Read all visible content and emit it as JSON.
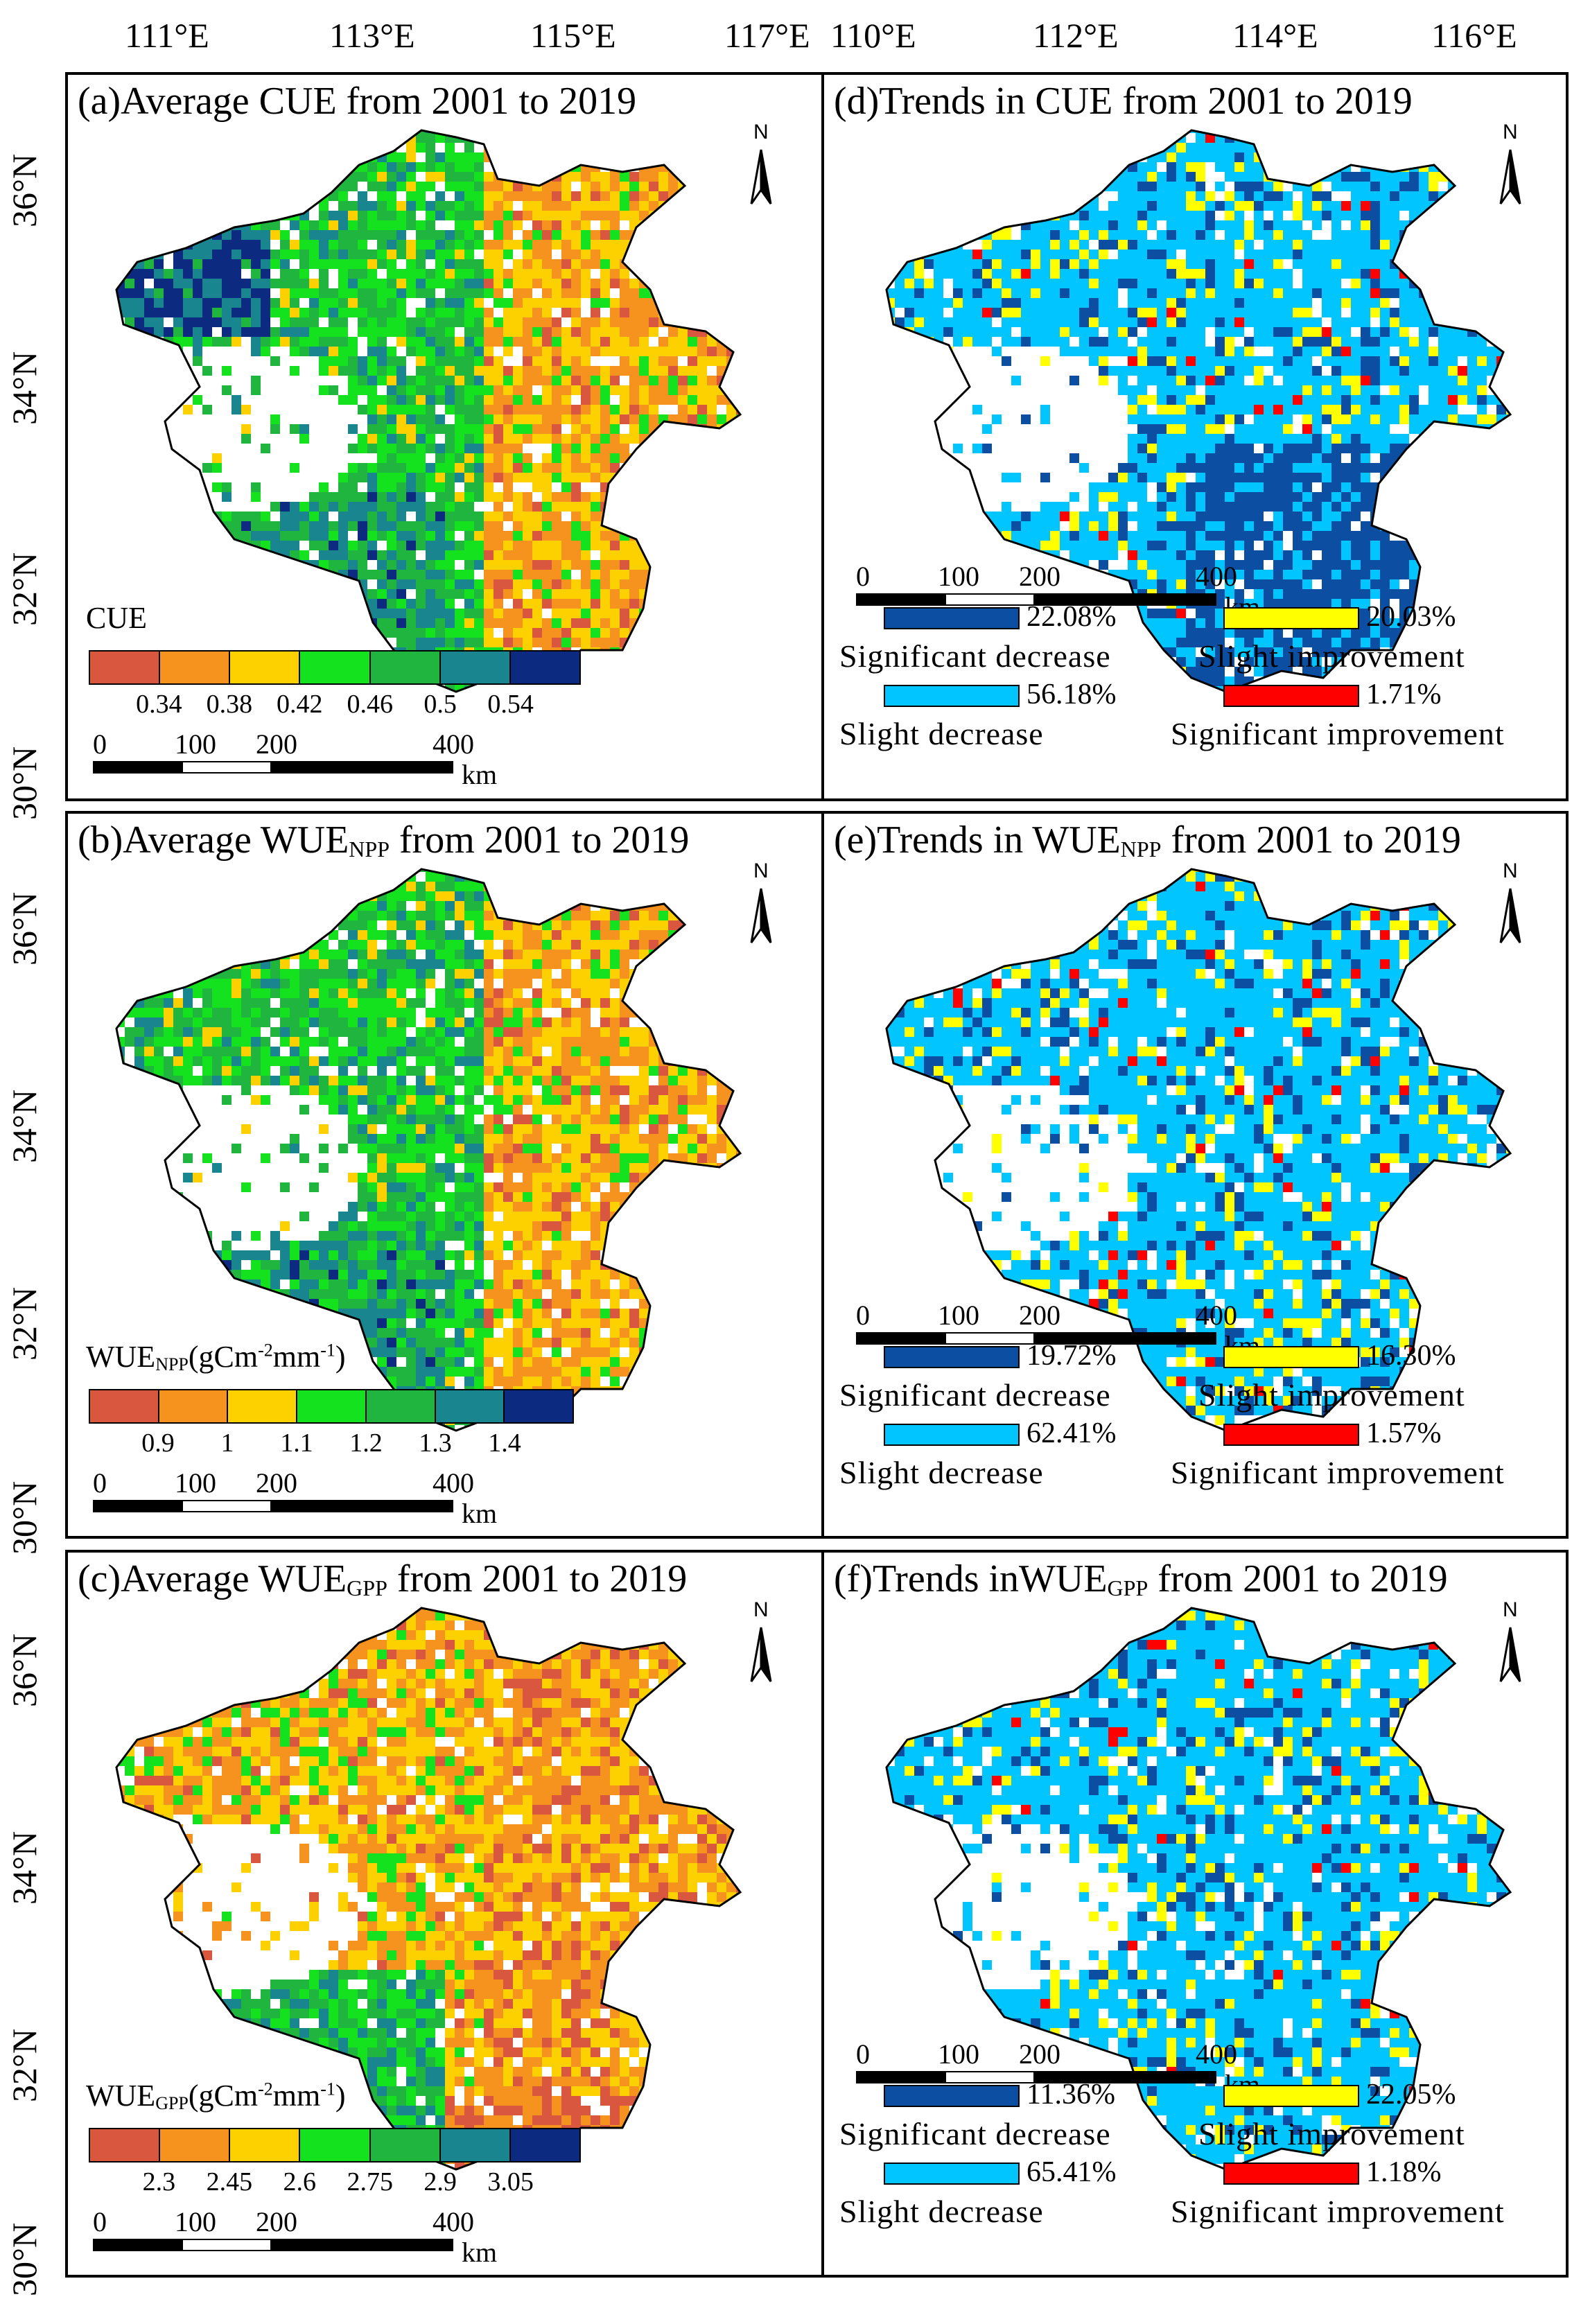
{
  "axes": {
    "top_left_lon": [
      "111°E",
      "113°E",
      "115°E",
      "117°E"
    ],
    "top_right_lon": [
      "110°E",
      "112°E",
      "114°E",
      "116°E"
    ],
    "lat_labels": [
      "36°N",
      "34°N",
      "32°N",
      "30°N"
    ]
  },
  "north_label": "N",
  "scale": {
    "ticks": [
      "0",
      "100",
      "200",
      "400"
    ],
    "unit": "km"
  },
  "avg_panels": [
    {
      "title_pre": "(a)Average CUE",
      "title_sub": "",
      "title_post": " from 2001 to 2019",
      "legend_title_pre": "CUE",
      "legend_title_sub": "",
      "legend_title_post": "",
      "legend_unit_base": "",
      "legend_unit_sup": "",
      "legend_unit_mid": "",
      "legend_unit_sup2": "",
      "legend_unit_end": "",
      "breaks": [
        "0.34",
        "0.38",
        "0.42",
        "0.46",
        "0.5",
        "0.54"
      ]
    },
    {
      "title_pre": "(b)Average WUE",
      "title_sub": "NPP",
      "title_post": " from 2001 to 2019",
      "legend_title_pre": "WUE",
      "legend_title_sub": "NPP",
      "legend_title_post": "",
      "legend_unit_base": "(gCm",
      "legend_unit_sup": "-2",
      "legend_unit_mid": "mm",
      "legend_unit_sup2": "-1",
      "legend_unit_end": ")",
      "breaks": [
        "0.9",
        "1",
        "1.1",
        "1.2",
        "1.3",
        "1.4"
      ]
    },
    {
      "title_pre": "(c)Average WUE",
      "title_sub": "GPP",
      "title_post": " from 2001 to 2019",
      "legend_title_pre": "WUE",
      "legend_title_sub": "GPP",
      "legend_title_post": "",
      "legend_unit_base": "(gCm",
      "legend_unit_sup": "-2",
      "legend_unit_mid": "mm",
      "legend_unit_sup2": "-1",
      "legend_unit_end": ")",
      "breaks": [
        "2.3",
        "2.45",
        "2.6",
        "2.75",
        "2.9",
        "3.05"
      ]
    }
  ],
  "trend_panels": [
    {
      "title_pre": "(d)Trends in CUE",
      "title_sub": "",
      "title_post": " from 2001 to 2019",
      "classes": {
        "significant_decrease": "22.08%",
        "slight_decrease": "56.18%",
        "slight_improvement": "20.03%",
        "significant_improvement": "1.71%"
      }
    },
    {
      "title_pre": "(e)Trends in WUE",
      "title_sub": "NPP",
      "title_post": " from 2001 to 2019",
      "classes": {
        "significant_decrease": "19.72%",
        "slight_decrease": "62.41%",
        "slight_improvement": "16.30%",
        "significant_improvement": "1.57%"
      }
    },
    {
      "title_pre": "(f)Trends inWUE",
      "title_sub": "GPP",
      "title_post": " from 2001 to 2019",
      "classes": {
        "significant_decrease": "11.36%",
        "slight_decrease": "65.41%",
        "slight_improvement": "22.05%",
        "significant_improvement": "1.18%"
      }
    }
  ],
  "class_names": {
    "significant_decrease": "Significant  decrease",
    "slight_decrease": "Slight  decrease",
    "slight_improvement": "Slight  improvement",
    "significant_improvement": "Significant  improvement"
  },
  "colors": {
    "ramp": [
      "#d9573f",
      "#f5931e",
      "#fdd000",
      "#14e21e",
      "#1fb53f",
      "#19858e",
      "#0c2b80"
    ],
    "significant_decrease": "#0b4ea2",
    "slight_decrease": "#00c5ff",
    "slight_improvement": "#ffff00",
    "significant_improvement": "#ff0000"
  }
}
